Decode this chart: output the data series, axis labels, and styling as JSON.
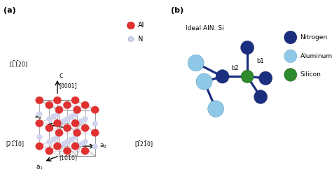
{
  "fig_width": 4.74,
  "fig_height": 2.43,
  "dpi": 100,
  "bg_color": "#ffffff",
  "panel_a": {
    "label": "(a)",
    "al_color": "#e03030",
    "n_color": "#d0d4ee",
    "bond_color_solid": "#888888",
    "bond_color_dash": "#aaaacc",
    "legend_al_label": "Al",
    "legend_n_label": "N"
  },
  "panel_b": {
    "label": "(b)",
    "title": "Ideal AlN: Si",
    "nitrogen_color": "#1b2f80",
    "aluminum_color": "#90c8e8",
    "silicon_color": "#2d8a2d",
    "bond_color": "#1b2f80",
    "b1_label": "b1",
    "b2_label": "b2",
    "legend_items": [
      {
        "label": "Nitrogen",
        "color": "#1b2f80"
      },
      {
        "label": "Aluminum",
        "color": "#90c8e8"
      },
      {
        "label": "Silicon",
        "color": "#2d8a2d"
      }
    ]
  }
}
